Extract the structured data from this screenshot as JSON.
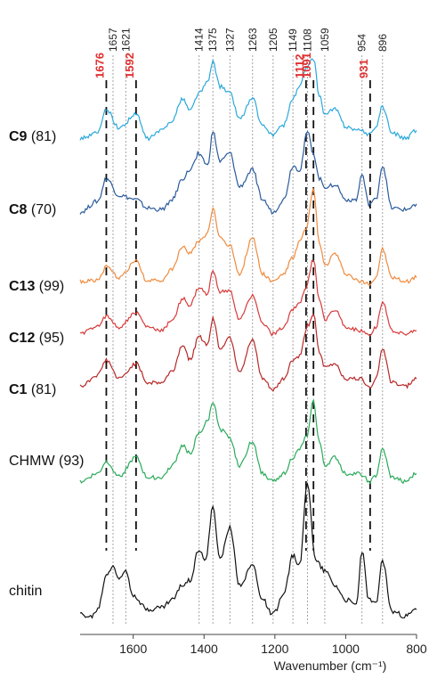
{
  "chart_data": {
    "type": "line",
    "xlabel": "Wavenumber (cm⁻¹)",
    "x_reversed": true,
    "xlim": [
      1750,
      800
    ],
    "x_ticks": [
      1600,
      1400,
      1200,
      1000,
      800
    ],
    "grid": false,
    "peak_lines": {
      "grey_dotted": [
        {
          "pos": 1657,
          "label": "1657"
        },
        {
          "pos": 1621,
          "label": "1621"
        },
        {
          "pos": 1414,
          "label": "1414"
        },
        {
          "pos": 1375,
          "label": "1375"
        },
        {
          "pos": 1327,
          "label": "1327"
        },
        {
          "pos": 1263,
          "label": "1263"
        },
        {
          "pos": 1205,
          "label": "1205"
        },
        {
          "pos": 1149,
          "label": "1149"
        },
        {
          "pos": 1108,
          "label": "1108"
        },
        {
          "pos": 1059,
          "label": "1059"
        },
        {
          "pos": 954,
          "label": "954"
        },
        {
          "pos": 896,
          "label": "896"
        }
      ],
      "black_dashed": [
        {
          "pos": 1676,
          "label": "1676"
        },
        {
          "pos": 1592,
          "label": "1592"
        },
        {
          "pos": 1112,
          "label": "1112"
        },
        {
          "pos": 1091,
          "label": "1091"
        },
        {
          "pos": 931,
          "label": "931"
        }
      ]
    },
    "series": [
      {
        "bold": "C9",
        "rest": " (81)",
        "color": "#2aa8dc",
        "points": [
          [
            1750,
            0.05
          ],
          [
            1700,
            0.12
          ],
          [
            1676,
            0.42
          ],
          [
            1640,
            0.18
          ],
          [
            1592,
            0.35
          ],
          [
            1560,
            0.05
          ],
          [
            1520,
            0.15
          ],
          [
            1490,
            0.28
          ],
          [
            1460,
            0.55
          ],
          [
            1440,
            0.4
          ],
          [
            1414,
            0.62
          ],
          [
            1390,
            0.75
          ],
          [
            1375,
            1.0
          ],
          [
            1355,
            0.7
          ],
          [
            1327,
            0.62
          ],
          [
            1300,
            0.3
          ],
          [
            1263,
            0.55
          ],
          [
            1235,
            0.2
          ],
          [
            1205,
            0.1
          ],
          [
            1175,
            0.22
          ],
          [
            1149,
            0.55
          ],
          [
            1130,
            0.7
          ],
          [
            1112,
            0.92
          ],
          [
            1091,
            1.05
          ],
          [
            1075,
            0.6
          ],
          [
            1059,
            0.35
          ],
          [
            1030,
            0.42
          ],
          [
            1000,
            0.2
          ],
          [
            960,
            0.15
          ],
          [
            931,
            0.1
          ],
          [
            915,
            0.2
          ],
          [
            896,
            0.45
          ],
          [
            870,
            0.12
          ],
          [
            830,
            0.05
          ],
          [
            800,
            0.15
          ]
        ]
      },
      {
        "bold": "C8",
        "rest": " (70)",
        "color": "#2a5a9c",
        "points": [
          [
            1750,
            0.05
          ],
          [
            1700,
            0.18
          ],
          [
            1676,
            0.45
          ],
          [
            1640,
            0.25
          ],
          [
            1592,
            0.2
          ],
          [
            1560,
            0.1
          ],
          [
            1520,
            0.08
          ],
          [
            1490,
            0.2
          ],
          [
            1460,
            0.45
          ],
          [
            1440,
            0.55
          ],
          [
            1414,
            0.75
          ],
          [
            1390,
            0.6
          ],
          [
            1375,
            1.0
          ],
          [
            1355,
            0.65
          ],
          [
            1327,
            0.75
          ],
          [
            1300,
            0.35
          ],
          [
            1263,
            0.55
          ],
          [
            1235,
            0.2
          ],
          [
            1205,
            0.05
          ],
          [
            1175,
            0.2
          ],
          [
            1149,
            0.6
          ],
          [
            1130,
            0.55
          ],
          [
            1108,
            1.0
          ],
          [
            1091,
            0.75
          ],
          [
            1075,
            0.45
          ],
          [
            1059,
            0.35
          ],
          [
            1030,
            0.38
          ],
          [
            1000,
            0.2
          ],
          [
            970,
            0.2
          ],
          [
            954,
            0.5
          ],
          [
            935,
            0.15
          ],
          [
            915,
            0.2
          ],
          [
            896,
            0.6
          ],
          [
            870,
            0.1
          ],
          [
            830,
            0.08
          ],
          [
            800,
            0.15
          ]
        ]
      },
      {
        "bold": "C13",
        "rest": " (99)",
        "color": "#f08a3c",
        "points": [
          [
            1750,
            0.1
          ],
          [
            1700,
            0.12
          ],
          [
            1676,
            0.28
          ],
          [
            1640,
            0.15
          ],
          [
            1592,
            0.35
          ],
          [
            1560,
            0.1
          ],
          [
            1520,
            0.12
          ],
          [
            1490,
            0.25
          ],
          [
            1460,
            0.55
          ],
          [
            1440,
            0.45
          ],
          [
            1414,
            0.6
          ],
          [
            1390,
            0.7
          ],
          [
            1375,
            1.0
          ],
          [
            1355,
            0.65
          ],
          [
            1327,
            0.55
          ],
          [
            1300,
            0.2
          ],
          [
            1263,
            0.65
          ],
          [
            1235,
            0.2
          ],
          [
            1205,
            0.1
          ],
          [
            1175,
            0.2
          ],
          [
            1149,
            0.4
          ],
          [
            1130,
            0.6
          ],
          [
            1112,
            0.75
          ],
          [
            1091,
            1.25
          ],
          [
            1075,
            0.6
          ],
          [
            1059,
            0.3
          ],
          [
            1030,
            0.45
          ],
          [
            1000,
            0.2
          ],
          [
            960,
            0.1
          ],
          [
            931,
            0.08
          ],
          [
            915,
            0.15
          ],
          [
            896,
            0.5
          ],
          [
            870,
            0.15
          ],
          [
            830,
            0.1
          ],
          [
            800,
            0.15
          ]
        ]
      },
      {
        "bold": "C12",
        "rest": " (95)",
        "color": "#d83a3a",
        "points": [
          [
            1750,
            0.1
          ],
          [
            1700,
            0.22
          ],
          [
            1676,
            0.35
          ],
          [
            1640,
            0.2
          ],
          [
            1592,
            0.4
          ],
          [
            1560,
            0.2
          ],
          [
            1520,
            0.15
          ],
          [
            1490,
            0.3
          ],
          [
            1460,
            0.6
          ],
          [
            1440,
            0.5
          ],
          [
            1414,
            0.75
          ],
          [
            1390,
            0.65
          ],
          [
            1375,
            1.0
          ],
          [
            1355,
            0.7
          ],
          [
            1327,
            0.7
          ],
          [
            1300,
            0.3
          ],
          [
            1263,
            0.65
          ],
          [
            1235,
            0.25
          ],
          [
            1205,
            0.1
          ],
          [
            1175,
            0.2
          ],
          [
            1149,
            0.45
          ],
          [
            1130,
            0.55
          ],
          [
            1112,
            0.75
          ],
          [
            1091,
            1.15
          ],
          [
            1075,
            0.6
          ],
          [
            1059,
            0.3
          ],
          [
            1030,
            0.45
          ],
          [
            1000,
            0.2
          ],
          [
            960,
            0.15
          ],
          [
            931,
            0.1
          ],
          [
            915,
            0.2
          ],
          [
            896,
            0.55
          ],
          [
            870,
            0.15
          ],
          [
            830,
            0.1
          ],
          [
            800,
            0.15
          ]
        ]
      },
      {
        "bold": "C1",
        "rest": " (81)",
        "color": "#b82828",
        "points": [
          [
            1750,
            0.1
          ],
          [
            1700,
            0.25
          ],
          [
            1676,
            0.45
          ],
          [
            1640,
            0.2
          ],
          [
            1592,
            0.4
          ],
          [
            1560,
            0.15
          ],
          [
            1520,
            0.15
          ],
          [
            1490,
            0.3
          ],
          [
            1460,
            0.65
          ],
          [
            1440,
            0.45
          ],
          [
            1414,
            0.75
          ],
          [
            1390,
            0.65
          ],
          [
            1375,
            1.0
          ],
          [
            1355,
            0.6
          ],
          [
            1327,
            0.75
          ],
          [
            1300,
            0.3
          ],
          [
            1263,
            0.7
          ],
          [
            1235,
            0.2
          ],
          [
            1205,
            0.05
          ],
          [
            1175,
            0.2
          ],
          [
            1149,
            0.45
          ],
          [
            1130,
            0.5
          ],
          [
            1108,
            0.9
          ],
          [
            1091,
            1.05
          ],
          [
            1075,
            0.55
          ],
          [
            1059,
            0.35
          ],
          [
            1030,
            0.4
          ],
          [
            1000,
            0.2
          ],
          [
            960,
            0.2
          ],
          [
            931,
            0.1
          ],
          [
            915,
            0.2
          ],
          [
            896,
            0.6
          ],
          [
            870,
            0.15
          ],
          [
            830,
            0.1
          ],
          [
            800,
            0.2
          ]
        ]
      },
      {
        "bold": "",
        "rest": "CHMW (93)",
        "color": "#2aaa5a",
        "points": [
          [
            1750,
            0.05
          ],
          [
            1700,
            0.15
          ],
          [
            1676,
            0.3
          ],
          [
            1640,
            0.12
          ],
          [
            1592,
            0.35
          ],
          [
            1560,
            0.1
          ],
          [
            1520,
            0.1
          ],
          [
            1490,
            0.25
          ],
          [
            1460,
            0.5
          ],
          [
            1440,
            0.4
          ],
          [
            1414,
            0.65
          ],
          [
            1390,
            0.8
          ],
          [
            1375,
            1.05
          ],
          [
            1355,
            0.7
          ],
          [
            1327,
            0.6
          ],
          [
            1300,
            0.25
          ],
          [
            1263,
            0.55
          ],
          [
            1235,
            0.15
          ],
          [
            1205,
            0.05
          ],
          [
            1175,
            0.15
          ],
          [
            1149,
            0.35
          ],
          [
            1130,
            0.45
          ],
          [
            1112,
            0.6
          ],
          [
            1091,
            1.05
          ],
          [
            1075,
            0.55
          ],
          [
            1059,
            0.25
          ],
          [
            1030,
            0.35
          ],
          [
            1000,
            0.15
          ],
          [
            960,
            0.15
          ],
          [
            931,
            0.05
          ],
          [
            915,
            0.12
          ],
          [
            896,
            0.45
          ],
          [
            870,
            0.1
          ],
          [
            830,
            0.05
          ],
          [
            800,
            0.15
          ]
        ]
      },
      {
        "bold": "",
        "rest": "chitin",
        "color": "#111111",
        "points": [
          [
            1750,
            0.05
          ],
          [
            1720,
            0.02
          ],
          [
            1700,
            0.1
          ],
          [
            1676,
            0.45
          ],
          [
            1657,
            0.55
          ],
          [
            1640,
            0.4
          ],
          [
            1621,
            0.5
          ],
          [
            1600,
            0.25
          ],
          [
            1560,
            0.1
          ],
          [
            1520,
            0.12
          ],
          [
            1490,
            0.2
          ],
          [
            1460,
            0.35
          ],
          [
            1440,
            0.4
          ],
          [
            1414,
            0.72
          ],
          [
            1395,
            0.6
          ],
          [
            1375,
            1.15
          ],
          [
            1355,
            0.6
          ],
          [
            1327,
            0.95
          ],
          [
            1300,
            0.35
          ],
          [
            1263,
            0.55
          ],
          [
            1235,
            0.2
          ],
          [
            1205,
            0.05
          ],
          [
            1175,
            0.25
          ],
          [
            1149,
            0.65
          ],
          [
            1130,
            0.55
          ],
          [
            1108,
            1.4
          ],
          [
            1085,
            0.6
          ],
          [
            1059,
            0.5
          ],
          [
            1030,
            0.35
          ],
          [
            1000,
            0.2
          ],
          [
            970,
            0.15
          ],
          [
            954,
            0.7
          ],
          [
            935,
            0.2
          ],
          [
            915,
            0.15
          ],
          [
            896,
            0.6
          ],
          [
            870,
            0.08
          ],
          [
            830,
            0.03
          ],
          [
            800,
            0.1
          ]
        ]
      }
    ]
  }
}
